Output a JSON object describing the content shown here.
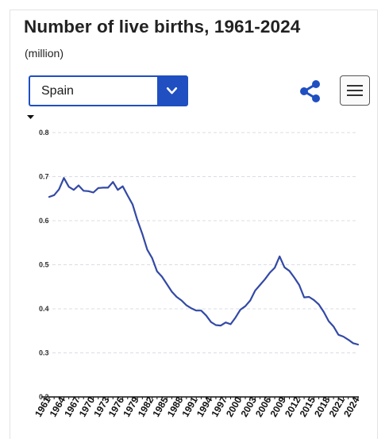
{
  "header": {
    "title": "Number of live births, 1961-2024",
    "subtitle": "(million)"
  },
  "country_select": {
    "value": "Spain"
  },
  "icons": {
    "dropdown": "chevron-down-icon",
    "share": "share-icon",
    "menu": "hamburger-menu-icon"
  },
  "colors": {
    "line": "#3349a6",
    "accent": "#1f4fc1"
  },
  "chart_data": {
    "type": "line",
    "title": "Number of live births, 1961-2024",
    "subtitle": "(million)",
    "ylim": [
      0.2,
      0.8
    ],
    "yticks": [
      "0.2",
      "0.3",
      "0.4",
      "0.5",
      "0.6",
      "0.7",
      "0.8"
    ],
    "xtick_labels": [
      "1961",
      "1964",
      "1967",
      "1970",
      "1973",
      "1976",
      "1979",
      "1982",
      "1985",
      "1988",
      "1991",
      "1994",
      "1997",
      "2000",
      "2003",
      "2006",
      "2009",
      "2012",
      "2015",
      "2018",
      "2021",
      "2024"
    ],
    "grid": true,
    "series": [
      {
        "x": [
          1961,
          1962,
          1963,
          1964,
          1965,
          1966,
          1967,
          1968,
          1969,
          1970,
          1971,
          1972,
          1973,
          1974,
          1975,
          1976,
          1977,
          1978,
          1979,
          1980,
          1981,
          1982,
          1983,
          1984,
          1985,
          1986,
          1987,
          1988,
          1989,
          1990,
          1991,
          1992,
          1993,
          1994,
          1995,
          1996,
          1997,
          1998,
          1999,
          2000,
          2001,
          2002,
          2003,
          2004,
          2005,
          2006,
          2007,
          2008,
          2009,
          2010,
          2011,
          2012,
          2013,
          2014,
          2015,
          2016,
          2017,
          2018,
          2019,
          2020,
          2021,
          2022,
          2023,
          2024
        ],
        "values": [
          0.654,
          0.658,
          0.671,
          0.697,
          0.677,
          0.67,
          0.68,
          0.668,
          0.667,
          0.664,
          0.674,
          0.675,
          0.675,
          0.688,
          0.67,
          0.678,
          0.657,
          0.637,
          0.601,
          0.57,
          0.534,
          0.515,
          0.485,
          0.473,
          0.456,
          0.439,
          0.427,
          0.419,
          0.408,
          0.401,
          0.396,
          0.396,
          0.385,
          0.37,
          0.363,
          0.362,
          0.369,
          0.365,
          0.38,
          0.398,
          0.406,
          0.419,
          0.441,
          0.454,
          0.467,
          0.482,
          0.493,
          0.519,
          0.494,
          0.486,
          0.471,
          0.454,
          0.426,
          0.427,
          0.42,
          0.41,
          0.393,
          0.372,
          0.36,
          0.341,
          0.337,
          0.33,
          0.322,
          0.319
        ]
      }
    ]
  }
}
